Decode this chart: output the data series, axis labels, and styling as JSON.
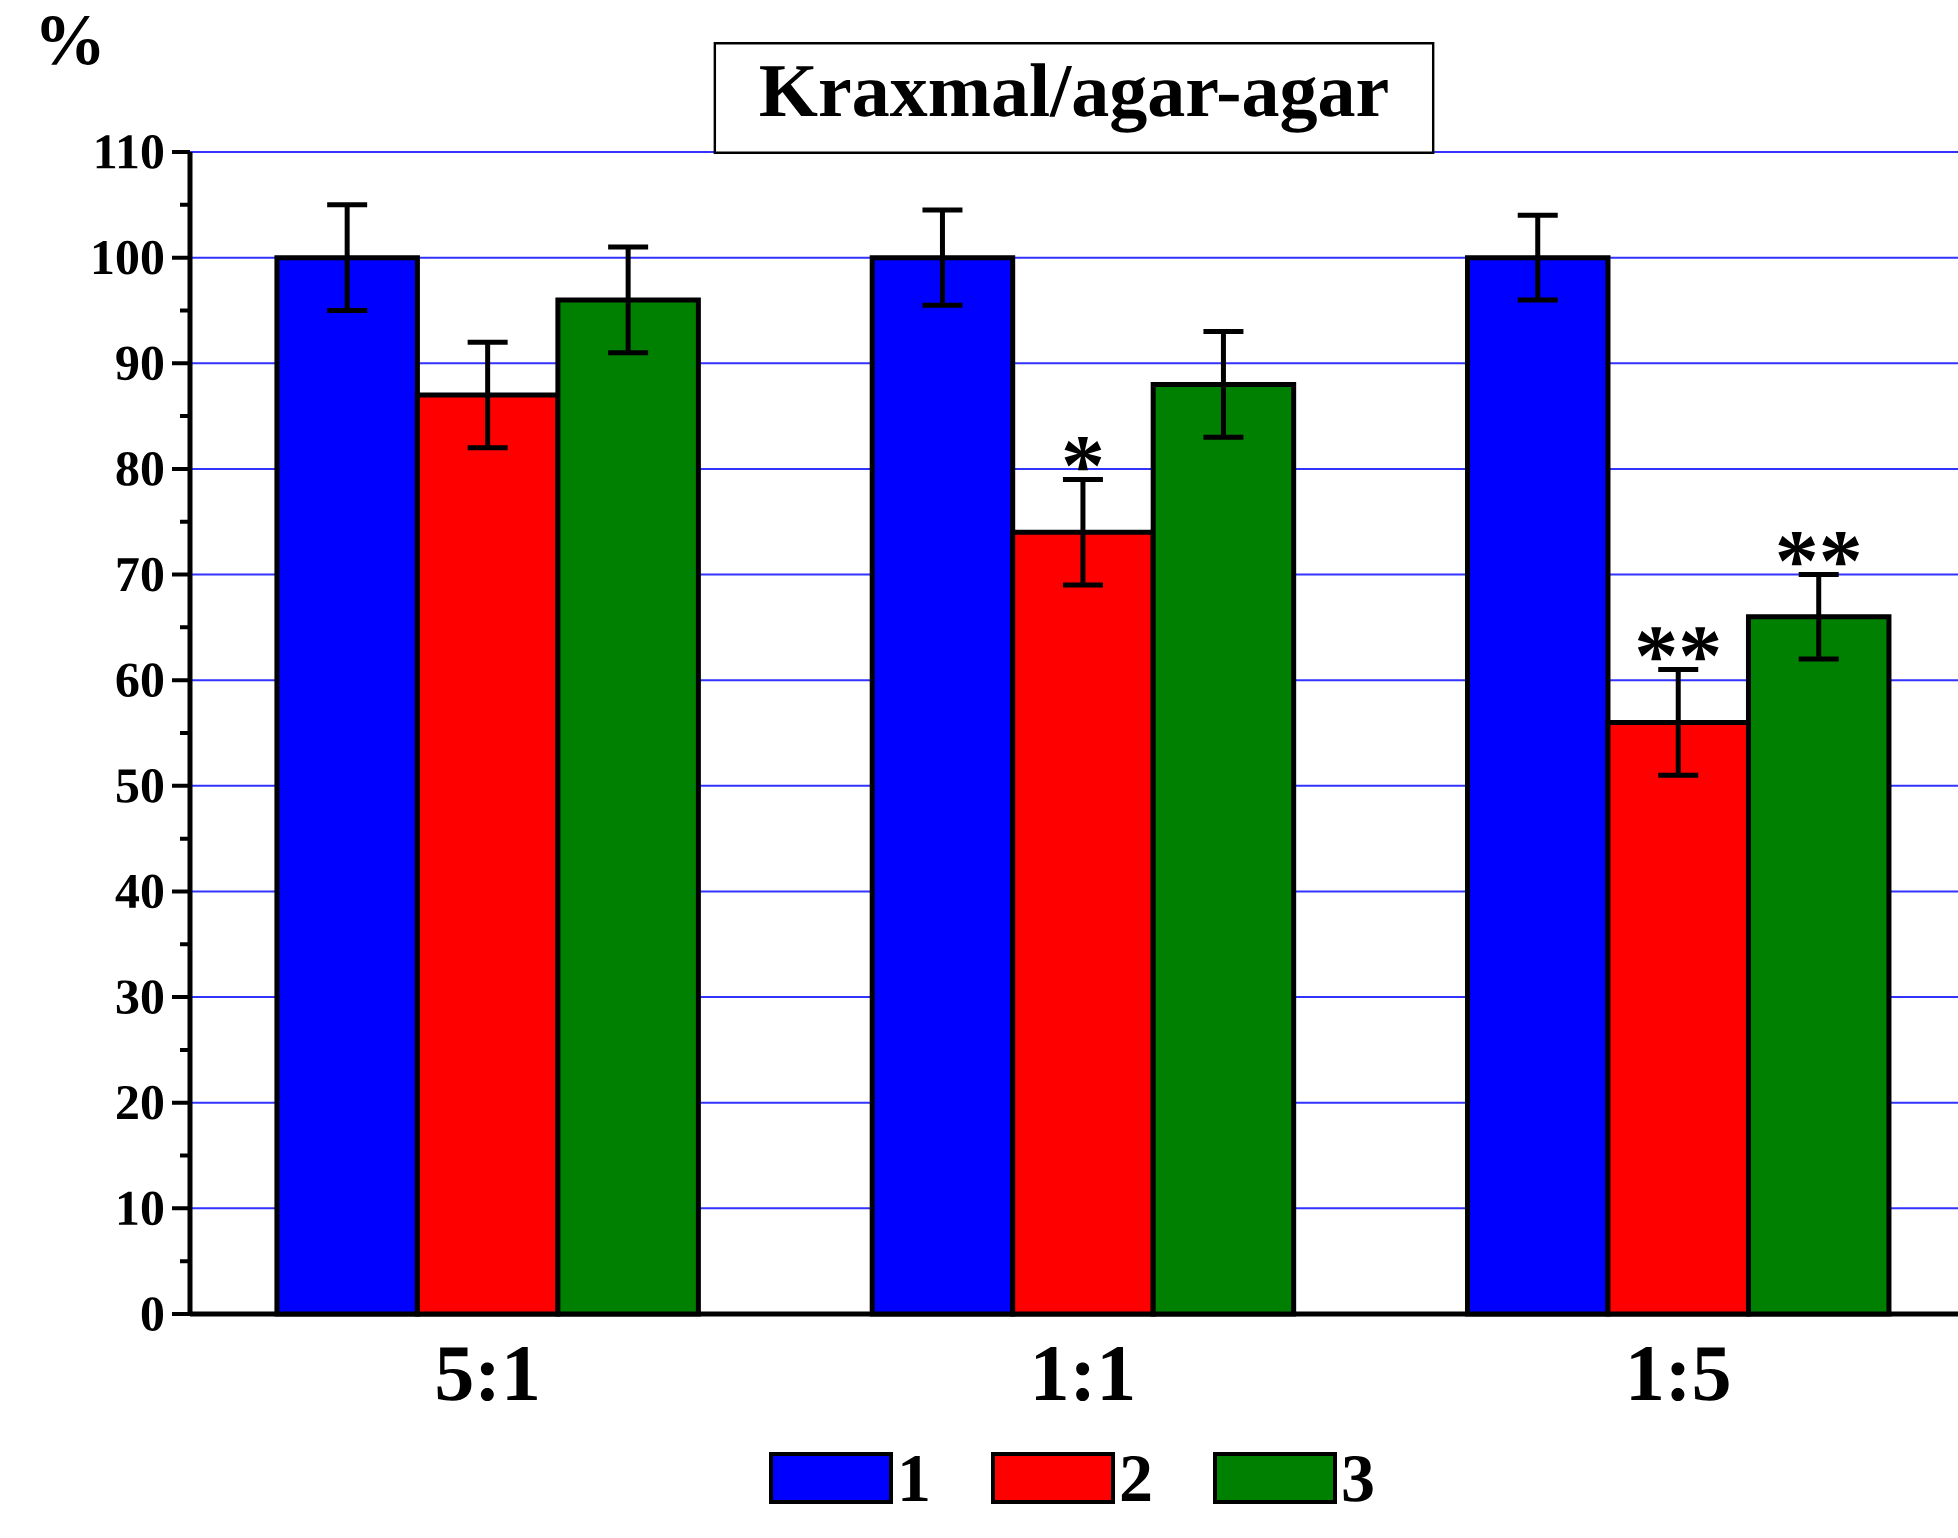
{
  "chart_data": {
    "type": "bar",
    "title": "Kraxmal/agar-agar",
    "ylabel": "%",
    "categories": [
      "5:1",
      "1:1",
      "1:5"
    ],
    "series": [
      {
        "name": "1",
        "color": "#0000ff",
        "values": [
          100,
          100,
          100
        ],
        "errors": [
          5,
          4.5,
          4
        ]
      },
      {
        "name": "2",
        "color": "#ff0000",
        "values": [
          87,
          74,
          56
        ],
        "errors": [
          5,
          5,
          5
        ]
      },
      {
        "name": "3",
        "color": "#008000",
        "values": [
          96,
          88,
          66
        ],
        "errors": [
          5,
          5,
          4
        ]
      }
    ],
    "ylim": [
      0,
      110
    ],
    "yticks": [
      0,
      10,
      20,
      30,
      40,
      50,
      60,
      70,
      80,
      90,
      100,
      110
    ],
    "grid": "y",
    "legend": "bottom",
    "annotations": [
      "*",
      "**",
      "**"
    ]
  }
}
